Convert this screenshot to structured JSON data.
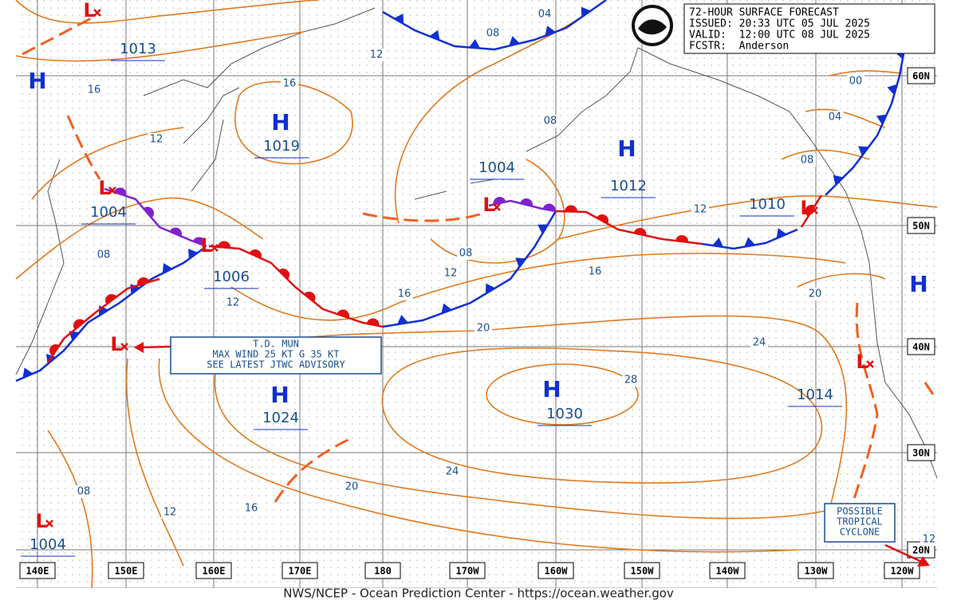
{
  "header": {
    "lines": [
      "72-HOUR SURFACE FORECAST",
      "ISSUED: 20:33 UTC 05 JUL 2025",
      "VALID:  12:00 UTC 08 JUL 2025",
      "FCSTR:  Anderson"
    ]
  },
  "footer": "NWS/NCEP - Ocean Prediction Center - https://ocean.weather.gov",
  "longitudes": [
    "140E",
    "150E",
    "160E",
    "170E",
    "180",
    "170W",
    "160W",
    "150W",
    "140W",
    "130W",
    "120W"
  ],
  "latitudes": [
    "60N",
    "50N",
    "40N",
    "30N",
    "20N"
  ],
  "symbols": [
    "H",
    "L",
    "H",
    "L",
    "L",
    "L",
    "H",
    "H",
    "L",
    "L",
    "H",
    "L",
    "H",
    "L"
  ],
  "pressures": [
    "1013",
    "1019",
    "1004",
    "1006",
    "1024",
    "1030",
    "1004",
    "1004",
    "1012",
    "1010",
    "1014"
  ],
  "isobar_labels": [
    "16",
    "12",
    "08",
    "12",
    "16",
    "12",
    "08",
    "04",
    "08",
    "08",
    "12",
    "16",
    "20",
    "16",
    "12",
    "24",
    "28",
    "24",
    "20",
    "16",
    "12",
    "08",
    "20",
    "08",
    "04",
    "00",
    "12"
  ],
  "annotations": {
    "td": [
      "T.D. MUN",
      "MAX WIND 25 KT G 35 KT",
      "SEE LATEST JTWC ADVISORY"
    ],
    "tropical": [
      "POSSIBLE",
      "TROPICAL",
      "CYCLONE"
    ]
  }
}
